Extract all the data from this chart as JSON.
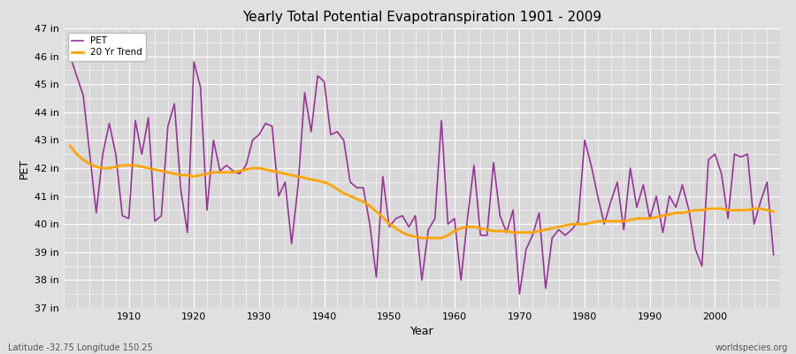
{
  "title": "Yearly Total Potential Evapotranspiration 1901 - 2009",
  "xlabel": "Year",
  "ylabel": "PET",
  "lat_lon_label": "Latitude -32.75 Longitude 150.25",
  "source_label": "worldspecies.org",
  "pet_color": "#993399",
  "trend_color": "#FFA500",
  "bg_color": "#e0e0e0",
  "plot_bg_color": "#d8d8d8",
  "legend_labels": [
    "PET",
    "20 Yr Trend"
  ],
  "ylim": [
    37,
    47
  ],
  "yticks": [
    37,
    38,
    39,
    40,
    41,
    42,
    43,
    44,
    45,
    46,
    47
  ],
  "ytick_labels": [
    "37 in",
    "38 in",
    "39 in",
    "40 in",
    "41 in",
    "42 in",
    "43 in",
    "44 in",
    "45 in",
    "46 in",
    "47 in"
  ],
  "years": [
    1901,
    1902,
    1903,
    1904,
    1905,
    1906,
    1907,
    1908,
    1909,
    1910,
    1911,
    1912,
    1913,
    1914,
    1915,
    1916,
    1917,
    1918,
    1919,
    1920,
    1921,
    1922,
    1923,
    1924,
    1925,
    1926,
    1927,
    1928,
    1929,
    1930,
    1931,
    1932,
    1933,
    1934,
    1935,
    1936,
    1937,
    1938,
    1939,
    1940,
    1941,
    1942,
    1943,
    1944,
    1945,
    1946,
    1947,
    1948,
    1949,
    1950,
    1951,
    1952,
    1953,
    1954,
    1955,
    1956,
    1957,
    1958,
    1959,
    1960,
    1961,
    1962,
    1963,
    1964,
    1965,
    1966,
    1967,
    1968,
    1969,
    1970,
    1971,
    1972,
    1973,
    1974,
    1975,
    1976,
    1977,
    1978,
    1979,
    1980,
    1981,
    1982,
    1983,
    1984,
    1985,
    1986,
    1987,
    1988,
    1989,
    1990,
    1991,
    1992,
    1993,
    1994,
    1995,
    1996,
    1997,
    1998,
    1999,
    2000,
    2001,
    2002,
    2003,
    2004,
    2005,
    2006,
    2007,
    2008,
    2009
  ],
  "pet_values": [
    46.0,
    45.3,
    44.6,
    42.5,
    40.4,
    42.5,
    43.6,
    42.5,
    40.3,
    40.2,
    43.7,
    42.5,
    43.8,
    40.1,
    40.3,
    43.5,
    44.3,
    41.2,
    39.7,
    45.8,
    44.9,
    40.5,
    43.0,
    41.9,
    42.1,
    41.9,
    41.8,
    42.1,
    43.0,
    43.2,
    43.6,
    43.5,
    41.0,
    41.5,
    39.3,
    41.4,
    44.7,
    43.3,
    45.3,
    45.1,
    43.2,
    43.3,
    43.0,
    41.5,
    41.3,
    41.3,
    40.0,
    38.1,
    41.7,
    39.9,
    40.2,
    40.3,
    39.9,
    40.3,
    38.0,
    39.8,
    40.2,
    43.7,
    40.0,
    40.2,
    38.0,
    40.2,
    42.1,
    39.6,
    39.6,
    42.2,
    40.3,
    39.7,
    40.5,
    37.5,
    39.1,
    39.6,
    40.4,
    37.7,
    39.5,
    39.8,
    39.6,
    39.8,
    40.1,
    43.0,
    42.1,
    41.0,
    40.0,
    40.8,
    41.5,
    39.8,
    42.0,
    40.6,
    41.4,
    40.2,
    41.0,
    39.7,
    41.0,
    40.6,
    41.4,
    40.5,
    39.1,
    38.5,
    42.3,
    42.5,
    41.8,
    40.2,
    42.5,
    42.4,
    42.5,
    40.0,
    40.8,
    41.5,
    38.9
  ],
  "trend_values": [
    42.8,
    42.5,
    42.3,
    42.15,
    42.05,
    42.0,
    42.0,
    42.05,
    42.1,
    42.1,
    42.1,
    42.05,
    42.0,
    41.95,
    41.9,
    41.85,
    41.8,
    41.75,
    41.75,
    41.7,
    41.75,
    41.8,
    41.85,
    41.85,
    41.85,
    41.85,
    41.9,
    41.95,
    42.0,
    42.0,
    41.95,
    41.9,
    41.85,
    41.8,
    41.75,
    41.7,
    41.65,
    41.6,
    41.55,
    41.5,
    41.4,
    41.25,
    41.1,
    41.0,
    40.9,
    40.8,
    40.65,
    40.45,
    40.25,
    40.0,
    39.85,
    39.7,
    39.6,
    39.55,
    39.5,
    39.5,
    39.5,
    39.5,
    39.6,
    39.75,
    39.85,
    39.9,
    39.9,
    39.85,
    39.8,
    39.75,
    39.75,
    39.75,
    39.7,
    39.7,
    39.7,
    39.7,
    39.75,
    39.8,
    39.85,
    39.9,
    39.95,
    40.0,
    40.0,
    40.0,
    40.05,
    40.1,
    40.1,
    40.1,
    40.1,
    40.1,
    40.15,
    40.2,
    40.2,
    40.2,
    40.25,
    40.3,
    40.35,
    40.4,
    40.4,
    40.45,
    40.5,
    40.5,
    40.55,
    40.55,
    40.55,
    40.5,
    40.5,
    40.5,
    40.5,
    40.55,
    40.55,
    40.5,
    40.45
  ]
}
